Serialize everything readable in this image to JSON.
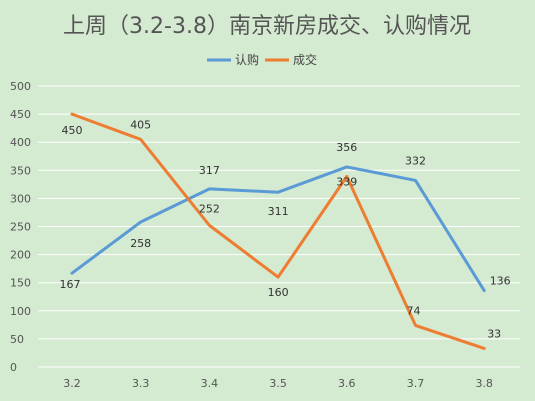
{
  "chart_data": {
    "type": "line",
    "title": "上周（3.2-3.8）南京新房成交、认购情况",
    "xlabel": "",
    "ylabel": "",
    "categories": [
      "3.2",
      "3.3",
      "3.4",
      "3.5",
      "3.6",
      "3.7",
      "3.8"
    ],
    "ylim": [
      0,
      500
    ],
    "yticks": [
      0,
      50,
      100,
      150,
      200,
      250,
      300,
      350,
      400,
      450,
      500
    ],
    "grid": true,
    "legend_position": "top-center",
    "series": [
      {
        "name": "认购",
        "color": "#5b9bd5",
        "values": [
          167,
          258,
          317,
          311,
          356,
          332,
          136
        ]
      },
      {
        "name": "成交",
        "color": "#ed7d31",
        "values": [
          450,
          405,
          252,
          160,
          339,
          74,
          33
        ]
      }
    ],
    "colors": {
      "background": "#d4ead1",
      "grid": "#ffffff"
    }
  }
}
